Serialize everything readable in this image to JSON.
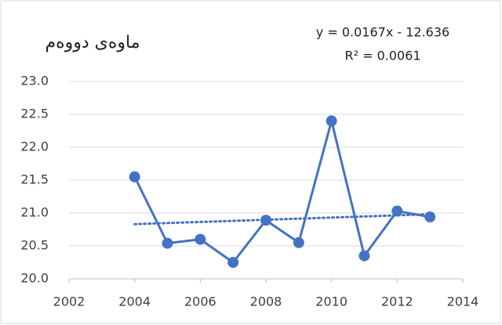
{
  "chart_data": {
    "type": "line",
    "title": "ماوەی دووەم",
    "annotations": [
      "y = 0.0167x - 12.636",
      "R² = 0.0061"
    ],
    "x": [
      2004,
      2005,
      2006,
      2007,
      2008,
      2009,
      2010,
      2011,
      2012,
      2013
    ],
    "series": [
      {
        "color": "#4472c4",
        "values": [
          21.55,
          20.54,
          20.6,
          20.25,
          20.89,
          20.55,
          22.4,
          20.35,
          21.03,
          20.94
        ]
      }
    ],
    "trendline": {
      "slope": 0.0167,
      "intercept": -12.636,
      "color": "#4472c4",
      "style": "dotted"
    },
    "xlim": [
      2002,
      2014
    ],
    "xticks": [
      2002,
      2004,
      2006,
      2008,
      2010,
      2012,
      2014
    ],
    "ylim": [
      20,
      23
    ],
    "yticks": [
      {
        "value": 20,
        "label": "20.0"
      },
      {
        "value": 20.5,
        "label": "20.5"
      },
      {
        "value": 21,
        "label": "21.0"
      },
      {
        "value": 21.5,
        "label": "21.5"
      },
      {
        "value": 22,
        "label": "22.0"
      },
      {
        "value": 22.5,
        "label": "22.5"
      },
      {
        "value": 23,
        "label": "23.0"
      }
    ],
    "grid": true
  }
}
